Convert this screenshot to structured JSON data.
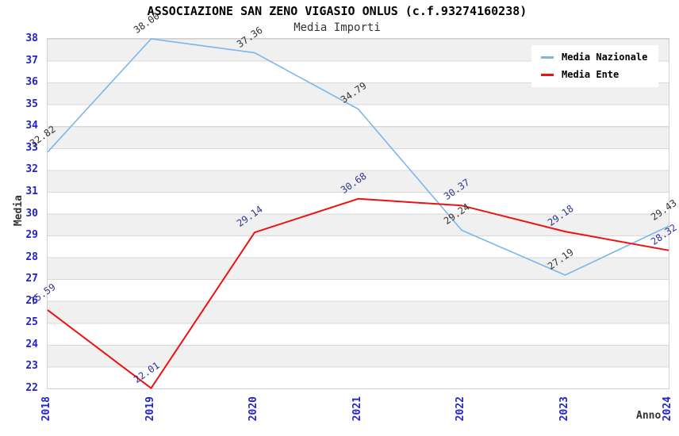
{
  "header": {
    "title": "ASSOCIAZIONE SAN ZENO VIGASIO ONLUS (c.f.93274160238)",
    "subtitle": "Media Importi"
  },
  "chart_data": {
    "type": "line",
    "title": "ASSOCIAZIONE SAN ZENO VIGASIO ONLUS (c.f.93274160238)",
    "subtitle": "Media Importi",
    "xlabel": "Anno",
    "ylabel": "Media",
    "x": [
      2018,
      2019,
      2020,
      2021,
      2022,
      2023,
      2024
    ],
    "ylim": [
      22,
      38
    ],
    "ytick_step": 1,
    "grid": "horizontal-bands",
    "legend_position": "top-right",
    "series": [
      {
        "name": "Media Nazionale",
        "color": "#7cb5ec",
        "label_color": "#333333",
        "values": [
          32.82,
          38.0,
          37.36,
          34.79,
          29.24,
          27.19,
          29.43
        ]
      },
      {
        "name": "Media Ente",
        "color": "#ee1111",
        "label_color": "#333399",
        "values": [
          25.59,
          22.01,
          29.14,
          30.68,
          30.37,
          29.18,
          28.32
        ]
      }
    ]
  },
  "colors": {
    "axis_text": "#2222cc",
    "band": "#f0f0f0",
    "gridline": "#d9d9d9",
    "plot_border": "#d0d0d0",
    "background": "#ffffff",
    "title_text": "#000000",
    "subtitle_text": "#333333",
    "axis_label_text": "#333333"
  }
}
